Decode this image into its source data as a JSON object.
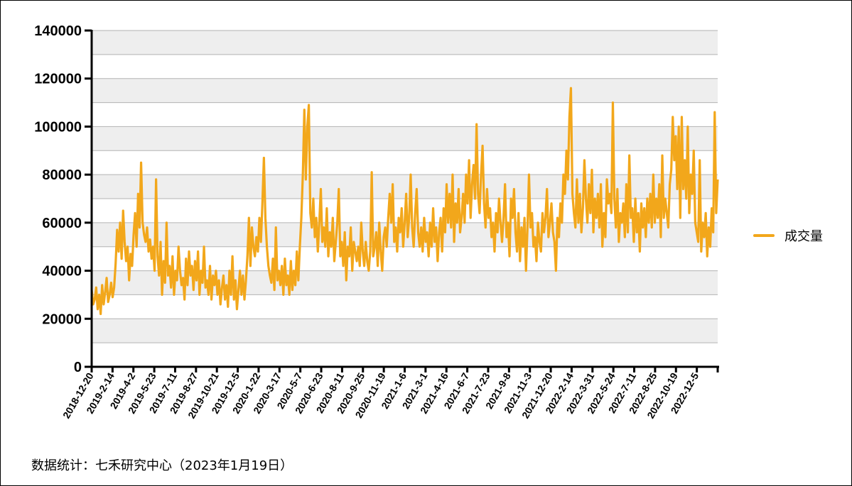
{
  "chart_data": {
    "type": "line",
    "title": "",
    "xlabel": "",
    "ylabel": "",
    "ylim": [
      0,
      140000
    ],
    "yticks": [
      0,
      20000,
      40000,
      60000,
      80000,
      100000,
      120000,
      140000
    ],
    "ytick_labels": [
      "0",
      "20000",
      "40000",
      "60000",
      "80000",
      "100000",
      "120000",
      "140000"
    ],
    "grid": true,
    "legend_position": "right",
    "xtick_labels": [
      "2018-12-20",
      "2019-2-14",
      "2019-4-2",
      "2019-5-23",
      "2019-7-11",
      "2019-8-27",
      "2019-10-21",
      "2019-12-5",
      "2020-1-22",
      "2020-3-17",
      "2020-5-7",
      "2020-6-23",
      "2020-8-11",
      "2020-9-25",
      "2020-11-19",
      "2021-1-6",
      "2021-3-1",
      "2021-4-16",
      "2021-6-7",
      "2021-7-23",
      "2021-9-8",
      "2021-11-3",
      "2021-12-20",
      "2022-2-14",
      "2022-3-31",
      "2022-5-24",
      "2022-7-11",
      "2022-8-25",
      "2022-10-19",
      "2022-12-5"
    ],
    "series": [
      {
        "name": "成交量",
        "color": "#f2a71b",
        "values": [
          32000,
          26000,
          28000,
          33000,
          24000,
          30000,
          22000,
          34000,
          26000,
          31000,
          37000,
          27000,
          30000,
          35000,
          29000,
          33000,
          43000,
          57000,
          48000,
          60000,
          45000,
          65000,
          52000,
          44000,
          50000,
          36000,
          47000,
          42000,
          55000,
          64000,
          50000,
          72000,
          58000,
          85000,
          60000,
          55000,
          52000,
          58000,
          48000,
          53000,
          45000,
          50000,
          40000,
          78000,
          46000,
          38000,
          52000,
          30000,
          44000,
          35000,
          60000,
          38000,
          42000,
          33000,
          46000,
          30000,
          40000,
          36000,
          50000,
          40000,
          34000,
          37000,
          28000,
          45000,
          34000,
          48000,
          38000,
          42000,
          32000,
          44000,
          36000,
          48000,
          30000,
          40000,
          35000,
          50000,
          33000,
          36000,
          30000,
          42000,
          28000,
          38000,
          34000,
          40000,
          30000,
          36000,
          26000,
          33000,
          38000,
          28000,
          34000,
          25000,
          40000,
          30000,
          46000,
          28000,
          36000,
          24000,
          32000,
          40000,
          30000,
          38000,
          28000,
          36000,
          46000,
          62000,
          42000,
          58000,
          50000,
          46000,
          54000,
          48000,
          62000,
          52000,
          68000,
          87000,
          62000,
          50000,
          42000,
          38000,
          35000,
          45000,
          32000,
          58000,
          36000,
          40000,
          34000,
          42000,
          30000,
          45000,
          34000,
          38000,
          30000,
          44000,
          32000,
          40000,
          34000,
          48000,
          36000,
          50000,
          62000,
          80000,
          107000,
          78000,
          100000,
          109000,
          64000,
          58000,
          70000,
          54000,
          62000,
          48000,
          60000,
          74000,
          52000,
          58000,
          50000,
          66000,
          46000,
          56000,
          50000,
          62000,
          44000,
          52000,
          60000,
          74000,
          46000,
          52000,
          42000,
          56000,
          36000,
          50000,
          46000,
          58000,
          40000,
          52000,
          48000,
          44000,
          50000,
          42000,
          60000,
          48000,
          42000,
          52000,
          44000,
          40000,
          48000,
          81000,
          46000,
          50000,
          56000,
          42000,
          60000,
          48000,
          40000,
          54000,
          58000,
          50000,
          62000,
          72000,
          60000,
          76000,
          52000,
          58000,
          48000,
          62000,
          56000,
          66000,
          50000,
          60000,
          72000,
          54000,
          62000,
          80000,
          58000,
          50000,
          64000,
          74000,
          56000,
          50000,
          58000,
          48000,
          62000,
          52000,
          56000,
          46000,
          60000,
          50000,
          66000,
          52000,
          58000,
          44000,
          56000,
          62000,
          48000,
          66000,
          56000,
          76000,
          60000,
          72000,
          58000,
          80000,
          52000,
          68000,
          60000,
          74000,
          56000,
          62000,
          72000,
          60000,
          80000,
          68000,
          86000,
          62000,
          76000,
          84000,
          70000,
          101000,
          72000,
          64000,
          80000,
          92000,
          68000,
          58000,
          74000,
          62000,
          66000,
          54000,
          60000,
          48000,
          64000,
          56000,
          70000,
          60000,
          52000,
          62000,
          76000,
          54000,
          60000,
          46000,
          70000,
          62000,
          74000,
          56000,
          48000,
          64000,
          44000,
          58000,
          50000,
          62000,
          40000,
          58000,
          80000,
          58000,
          64000,
          50000,
          54000,
          44000,
          60000,
          52000,
          48000,
          64000,
          56000,
          62000,
          74000,
          54000,
          60000,
          68000,
          56000,
          52000,
          40000,
          62000,
          54000,
          68000,
          60000,
          80000,
          72000,
          90000,
          78000,
          104000,
          116000,
          72000,
          64000,
          58000,
          78000,
          60000,
          72000,
          56000,
          66000,
          86000,
          70000,
          60000,
          76000,
          64000,
          82000,
          56000,
          70000,
          62000,
          72000,
          58000,
          76000,
          50000,
          64000,
          54000,
          78000,
          68000,
          72000,
          64000,
          110000,
          70000,
          58000,
          74000,
          52000,
          64000,
          60000,
          68000,
          54000,
          76000,
          56000,
          88000,
          62000,
          66000,
          52000,
          70000,
          56000,
          64000,
          48000,
          68000,
          58000,
          66000,
          54000,
          70000,
          60000,
          72000,
          58000,
          80000,
          60000,
          70000,
          62000,
          76000,
          54000,
          88000,
          62000,
          70000,
          64000,
          58000,
          76000,
          82000,
          104000,
          86000,
          96000,
          74000,
          100000,
          62000,
          104000,
          74000,
          86000,
          70000,
          100000,
          64000,
          80000,
          72000,
          90000,
          60000,
          56000,
          52000,
          86000,
          48000,
          60000,
          54000,
          64000,
          46000,
          58000,
          50000,
          66000,
          56000,
          106000,
          64000,
          78000
        ]
      }
    ]
  },
  "source_text": "数据统计：七禾研究中心（2023年1月19日）"
}
